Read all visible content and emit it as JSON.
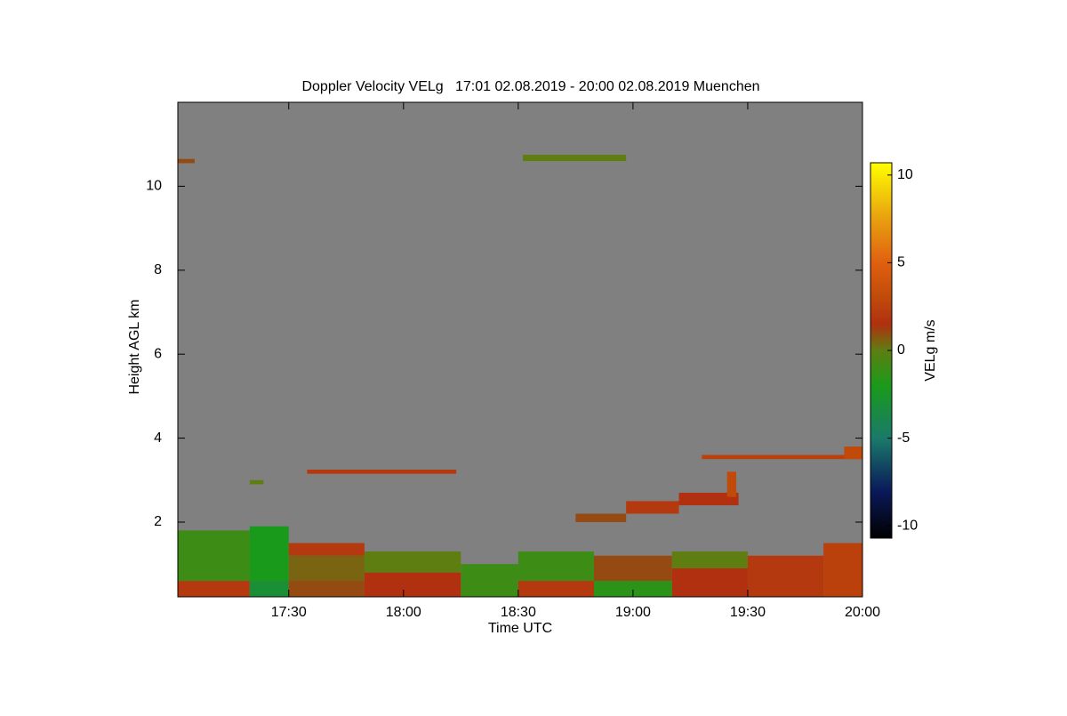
{
  "chart_data": {
    "type": "heatmap",
    "title": "Doppler Velocity VELg   17:01 02.08.2019 - 20:00 02.08.2019 Muenchen",
    "x_label": "Time UTC",
    "y_label": "Height AGL km",
    "colorbar_label": "VELg m/s",
    "xlim": [
      17.0167,
      20.0
    ],
    "ylim": [
      0.22,
      12.0
    ],
    "clim": [
      -10.7,
      10.7
    ],
    "xticks": [
      {
        "value": 17.5,
        "label": "17:30"
      },
      {
        "value": 18.0,
        "label": "18:00"
      },
      {
        "value": 18.5,
        "label": "18:30"
      },
      {
        "value": 19.0,
        "label": "19:00"
      },
      {
        "value": 19.5,
        "label": "19:30"
      },
      {
        "value": 20.0,
        "label": "20:00"
      }
    ],
    "yticks": [
      2,
      4,
      6,
      8,
      10
    ],
    "cticks": [
      -10,
      -5,
      0,
      5,
      10
    ],
    "background": "#808080",
    "colorscale": [
      [
        -10.7,
        "#000000"
      ],
      [
        -8,
        "#0a1a5a"
      ],
      [
        -5,
        "#1a7a6a"
      ],
      [
        -2,
        "#1a9a1a"
      ],
      [
        0,
        "#5e7e12"
      ],
      [
        1.5,
        "#b03010"
      ],
      [
        3,
        "#c04a0a"
      ],
      [
        5,
        "#e06010"
      ],
      [
        7.5,
        "#e8a010"
      ],
      [
        10.7,
        "#ffff00"
      ]
    ],
    "cells": [
      [
        17.0167,
        17.33,
        0.22,
        0.6,
        2
      ],
      [
        17.0167,
        17.33,
        0.6,
        1.8,
        -1
      ],
      [
        17.33,
        17.5,
        0.22,
        0.6,
        -3
      ],
      [
        17.33,
        17.5,
        0.6,
        1.9,
        -2
      ],
      [
        17.5,
        17.83,
        0.22,
        0.6,
        1
      ],
      [
        17.5,
        17.83,
        0.6,
        1.2,
        0.5
      ],
      [
        17.5,
        17.83,
        1.2,
        1.5,
        2
      ],
      [
        17.83,
        18.25,
        0.22,
        0.8,
        1.5
      ],
      [
        17.83,
        18.25,
        0.8,
        1.3,
        0
      ],
      [
        18.25,
        18.5,
        0.22,
        1.0,
        -1
      ],
      [
        18.5,
        18.83,
        0.22,
        0.6,
        2
      ],
      [
        18.5,
        18.83,
        0.6,
        1.3,
        -1
      ],
      [
        18.83,
        19.17,
        0.22,
        0.6,
        -1.5
      ],
      [
        18.83,
        19.17,
        0.6,
        1.2,
        1
      ],
      [
        19.17,
        19.5,
        0.22,
        0.9,
        1.5
      ],
      [
        19.17,
        19.5,
        0.9,
        1.3,
        0
      ],
      [
        19.5,
        19.83,
        0.22,
        1.2,
        2
      ],
      [
        19.83,
        20.0,
        0.22,
        1.5,
        2.5
      ],
      [
        18.52,
        18.97,
        10.6,
        10.75,
        0
      ],
      [
        17.0167,
        17.09,
        10.55,
        10.65,
        1
      ],
      [
        17.58,
        18.23,
        3.15,
        3.25,
        2
      ],
      [
        17.33,
        17.39,
        2.9,
        3.0,
        0
      ],
      [
        19.3,
        20.0,
        3.5,
        3.6,
        2.5
      ],
      [
        19.92,
        20.0,
        3.5,
        3.8,
        3
      ],
      [
        18.75,
        18.97,
        2.0,
        2.2,
        1
      ],
      [
        18.97,
        19.2,
        2.2,
        2.5,
        2
      ],
      [
        19.2,
        19.46,
        2.4,
        2.7,
        1.5
      ],
      [
        19.41,
        19.45,
        2.6,
        3.2,
        3
      ]
    ]
  }
}
